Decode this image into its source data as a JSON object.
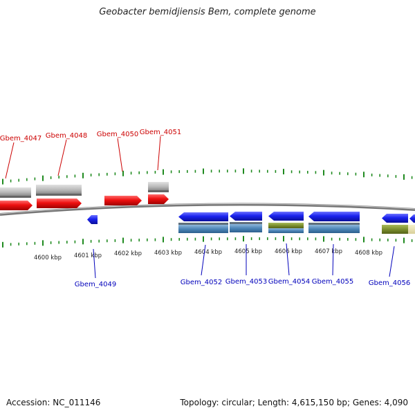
{
  "title": "Geobacter bemidjiensis Bem, complete genome",
  "footer": {
    "accession": "Accession: NC_011146",
    "stats": "Topology: circular; Length: 4,615,150 bp; Genes: 4,090"
  },
  "colors": {
    "forward": "#ee1111",
    "reverse": "#1a22ee",
    "forward_label": "#cc0000",
    "reverse_label": "#0000bb",
    "tick": "#1f8a1f",
    "backbone": "#8a8a8a",
    "rna_gray": "#b7b7b7",
    "steel": "#4d86b8",
    "olive": "#7c8f2e",
    "pale": "#e8e1a8"
  },
  "scale": {
    "unit": "kbp",
    "labels": [
      "4600 kbp",
      "4601 kbp",
      "4602 kbp",
      "4603 kbp",
      "4604 kbp",
      "4605 kbp",
      "4606 kbp",
      "4607 kbp",
      "4608 kbp"
    ]
  },
  "genes_forward": [
    "Gbem_4047",
    "Gbem_4048",
    "Gbem_4050",
    "Gbem_4051"
  ],
  "genes_reverse": [
    "Gbem_4049",
    "Gbem_4052",
    "Gbem_4053",
    "Gbem_4054",
    "Gbem_4055",
    "Gbem_4056"
  ]
}
